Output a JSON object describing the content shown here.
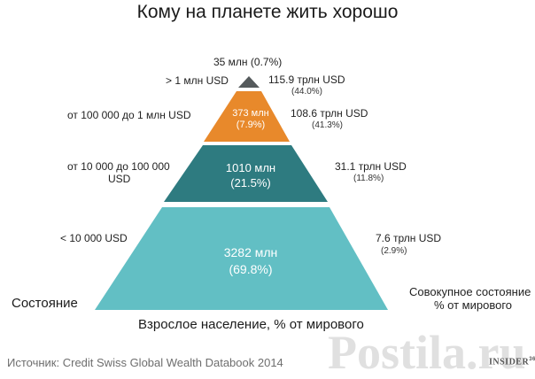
{
  "title": "Кому на планете жить хорошо",
  "chart_data": {
    "type": "pyramid",
    "title": "Кому на планете жить хорошо",
    "left_axis_label": "Состояние",
    "right_axis_label_line1": "Совокупное состояние",
    "right_axis_label_line2": "% от мирового",
    "bottom_axis_label": "Взрослое население, % от мирового",
    "tiers": [
      {
        "wealth_band": "> 1 млн USD",
        "population_label": "35 млн (0.7%)",
        "population_mln": 35,
        "population_pct": 0.7,
        "wealth_label": "115.9 трлн USD",
        "wealth_pct_label": "(44.0%)",
        "wealth_trln_usd": 115.9,
        "wealth_pct": 44.0,
        "color": "#555a5c"
      },
      {
        "wealth_band": "от 100 000 до 1 млн USD",
        "population_label_line1": "373 млн",
        "population_label_line2": "(7.9%)",
        "population_mln": 373,
        "population_pct": 7.9,
        "wealth_label": "108.6 трлн USD",
        "wealth_pct_label": "(41.3%)",
        "wealth_trln_usd": 108.6,
        "wealth_pct": 41.3,
        "color": "#e8892b"
      },
      {
        "wealth_band_line1": "от 10 000 до 100 000",
        "wealth_band_line2": "USD",
        "population_label_line1": "1010 млн",
        "population_label_line2": "(21.5%)",
        "population_mln": 1010,
        "population_pct": 21.5,
        "wealth_label": "31.1 трлн USD",
        "wealth_pct_label": "(11.8%)",
        "wealth_trln_usd": 31.1,
        "wealth_pct": 11.8,
        "color": "#2e7b80"
      },
      {
        "wealth_band": "< 10 000 USD",
        "population_label_line1": "3282 млн",
        "population_label_line2": "(69.8%)",
        "population_mln": 3282,
        "population_pct": 69.8,
        "wealth_label": "7.6 трлн USD",
        "wealth_pct_label": "(2.9%)",
        "wealth_trln_usd": 7.6,
        "wealth_pct": 2.9,
        "color": "#62bfc4"
      }
    ]
  },
  "source": "Источник: Credit Swiss Global Wealth Databook 2014",
  "brand": "INSIDER",
  "brand_sup": "360",
  "watermark": "Postila.ru",
  "colors": {
    "text_light": "#ffffff",
    "watermark": "#d6d6d6"
  }
}
